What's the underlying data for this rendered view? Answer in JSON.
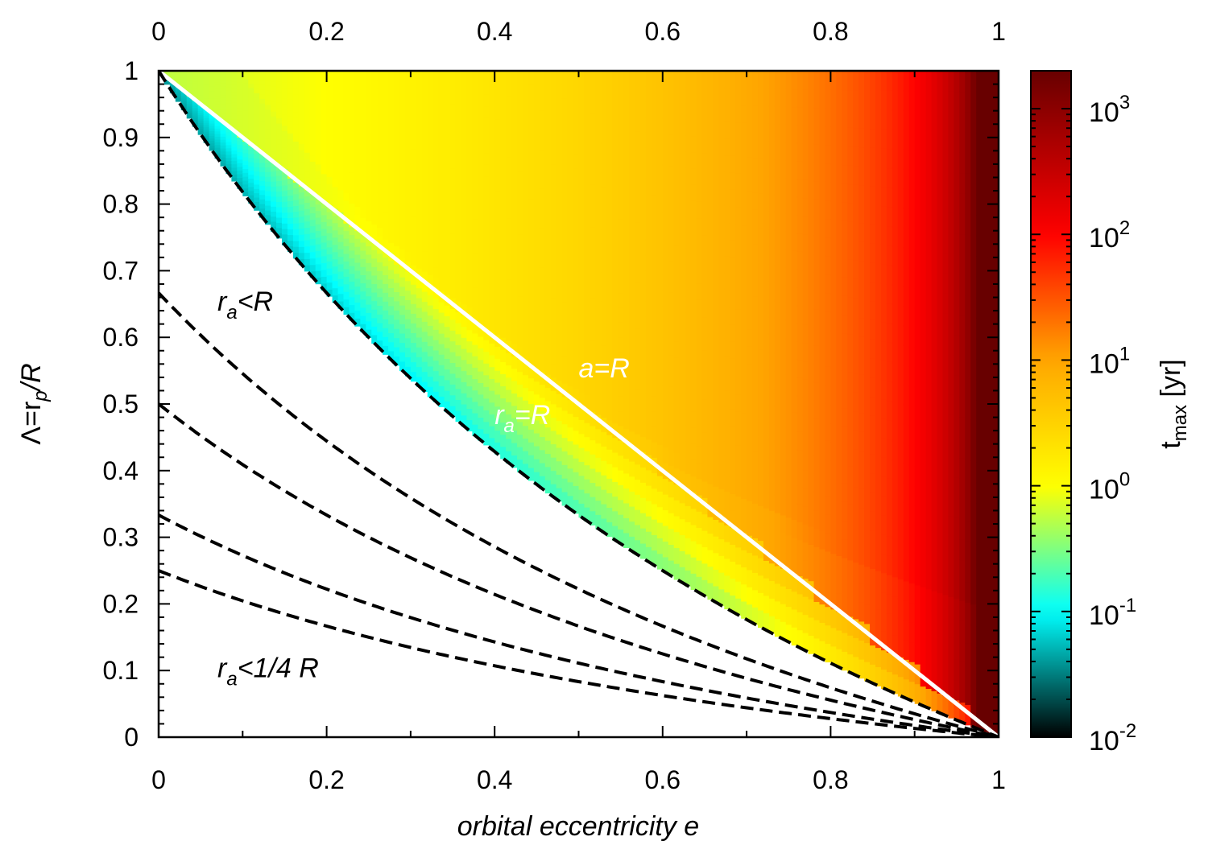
{
  "chart_data": {
    "type": "heatmap",
    "xlabel": "orbital eccentricity e",
    "ylabel_parts": [
      "Λ=r",
      "p",
      "/R"
    ],
    "xlim": [
      0,
      1
    ],
    "ylim": [
      0,
      1
    ],
    "x_ticks": [
      "0",
      "0.2",
      "0.4",
      "0.6",
      "0.8",
      "1"
    ],
    "y_ticks": [
      "0",
      "0.1",
      "0.2",
      "0.3",
      "0.4",
      "0.5",
      "0.6",
      "0.7",
      "0.8",
      "0.9",
      "1"
    ],
    "x_tick_values": [
      0,
      0.2,
      0.4,
      0.6,
      0.8,
      1.0
    ],
    "y_tick_values": [
      0,
      0.1,
      0.2,
      0.3,
      0.4,
      0.5,
      0.6,
      0.7,
      0.8,
      0.9,
      1.0
    ],
    "colorbar": {
      "label_main": "t",
      "label_sub": "max",
      "label_tail": " [yr]",
      "scale": "log",
      "range": [
        0.01,
        2000
      ],
      "ticks": [
        {
          "base": "10",
          "exp": "-2",
          "value": 0.01
        },
        {
          "base": "10",
          "exp": "-1",
          "value": 0.1
        },
        {
          "base": "10",
          "exp": "0",
          "value": 1
        },
        {
          "base": "10",
          "exp": "1",
          "value": 10
        },
        {
          "base": "10",
          "exp": "2",
          "value": 100
        },
        {
          "base": "10",
          "exp": "3",
          "value": 1000
        }
      ],
      "colors": [
        "#000000",
        "#00ffff",
        "#ffff00",
        "#ffa500",
        "#ff0000",
        "#8b0000"
      ]
    },
    "series": [
      {
        "name": "a=R",
        "style": "solid-white",
        "x": [
          0,
          1
        ],
        "y": [
          1,
          0
        ]
      },
      {
        "name": "r_a=R",
        "style": "dashed-black",
        "k": 1
      },
      {
        "style": "dashed-black",
        "k": 0.6667
      },
      {
        "style": "dashed-black",
        "k": 0.5
      },
      {
        "style": "dashed-black",
        "k": 0.3333
      },
      {
        "name": "r_a<1/4 R",
        "style": "dashed-black",
        "k": 0.25
      }
    ],
    "annotations": [
      {
        "id": "ra-lt-R",
        "main": "r",
        "sub": "a",
        "tail": "<R",
        "x": 0.07,
        "y": 0.64,
        "color": "#000000"
      },
      {
        "id": "ra-lt-quarter-R",
        "main": "r",
        "sub": "a",
        "tail": "<1/4 R",
        "x": 0.07,
        "y": 0.09,
        "color": "#000000"
      },
      {
        "id": "a-eq-R",
        "main": "a=R",
        "sub": "",
        "tail": "",
        "x": 0.5,
        "y": 0.54,
        "color": "#ffffff"
      },
      {
        "id": "ra-eq-R",
        "main": "r",
        "sub": "a",
        "tail": "=R",
        "x": 0.4,
        "y": 0.47,
        "color": "#ffffff"
      }
    ]
  }
}
